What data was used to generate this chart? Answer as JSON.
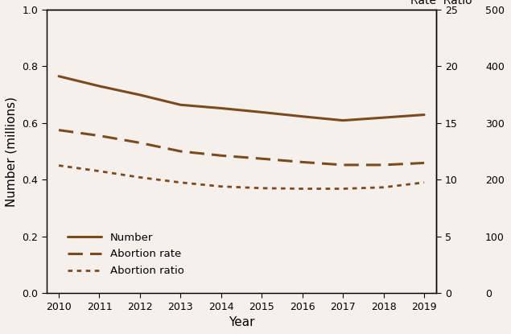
{
  "years": [
    2010,
    2011,
    2012,
    2013,
    2014,
    2015,
    2016,
    2017,
    2018,
    2019
  ],
  "number_millions": [
    0.765,
    0.73,
    0.699,
    0.664,
    0.652,
    0.638,
    0.623,
    0.609,
    0.619,
    0.629
  ],
  "abortion_rate_scaled": [
    0.575,
    0.555,
    0.53,
    0.5,
    0.485,
    0.474,
    0.462,
    0.452,
    0.452,
    0.459
  ],
  "abortion_ratio_scaled": [
    0.45,
    0.43,
    0.408,
    0.39,
    0.376,
    0.37,
    0.368,
    0.368,
    0.373,
    0.39
  ],
  "line_color": "#7B4A1E",
  "ylabel_left": "Number (millions)",
  "ylabel_right_top": "Rate  Ratio",
  "xlabel": "Year",
  "ylim_left": [
    0.0,
    1.0
  ],
  "ylim_rate": [
    0,
    25
  ],
  "ylim_ratio": [
    0,
    500
  ],
  "yticks_left": [
    0.0,
    0.2,
    0.4,
    0.6,
    0.8,
    1.0
  ],
  "yticks_rate": [
    0,
    5,
    10,
    15,
    20,
    25
  ],
  "yticks_ratio": [
    0,
    100,
    200,
    300,
    400,
    500
  ],
  "legend_labels": [
    "Number",
    "Abortion rate",
    "Abortion ratio"
  ],
  "background_color": "#f5f0eb"
}
